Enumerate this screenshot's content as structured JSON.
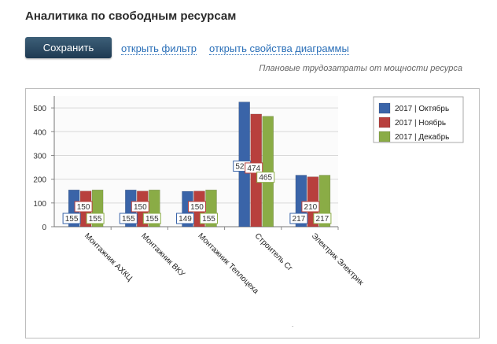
{
  "page": {
    "title": "Аналитика по свободным ресурсам",
    "save_label": "Сохранить",
    "open_filter_label": "открыть фильтр",
    "open_props_label": "открыть свойства диаграммы",
    "chart_subtitle": "Плановые трудозатраты от мощности ресурса"
  },
  "colors": {
    "blue": "#3a64a8",
    "red": "#b8403d",
    "green": "#8aac46",
    "link": "#2a6fb8"
  },
  "chart_data": {
    "type": "bar",
    "title": "",
    "xlabel": "",
    "ylabel": "",
    "ylim": [
      0,
      550
    ],
    "yticks": [
      0,
      100,
      200,
      300,
      400,
      500
    ],
    "grid": true,
    "legend_position": "top-right",
    "categories": [
      "Монтажник АХКЦ",
      "Монтажник ВКУ",
      "Монтажник Теплоцеха",
      "Строитель Сг",
      "Электрик Электрик"
    ],
    "series": [
      {
        "name": "2017 | Октябрь",
        "color": "#3a64a8",
        "values": [
          155,
          155,
          149,
          525,
          217
        ]
      },
      {
        "name": "2017 | Ноябрь",
        "color": "#b8403d",
        "values": [
          150,
          150,
          150,
          474,
          210
        ]
      },
      {
        "name": "2017 | Декабрь",
        "color": "#8aac46",
        "values": [
          155,
          155,
          155,
          465,
          217
        ]
      }
    ]
  }
}
